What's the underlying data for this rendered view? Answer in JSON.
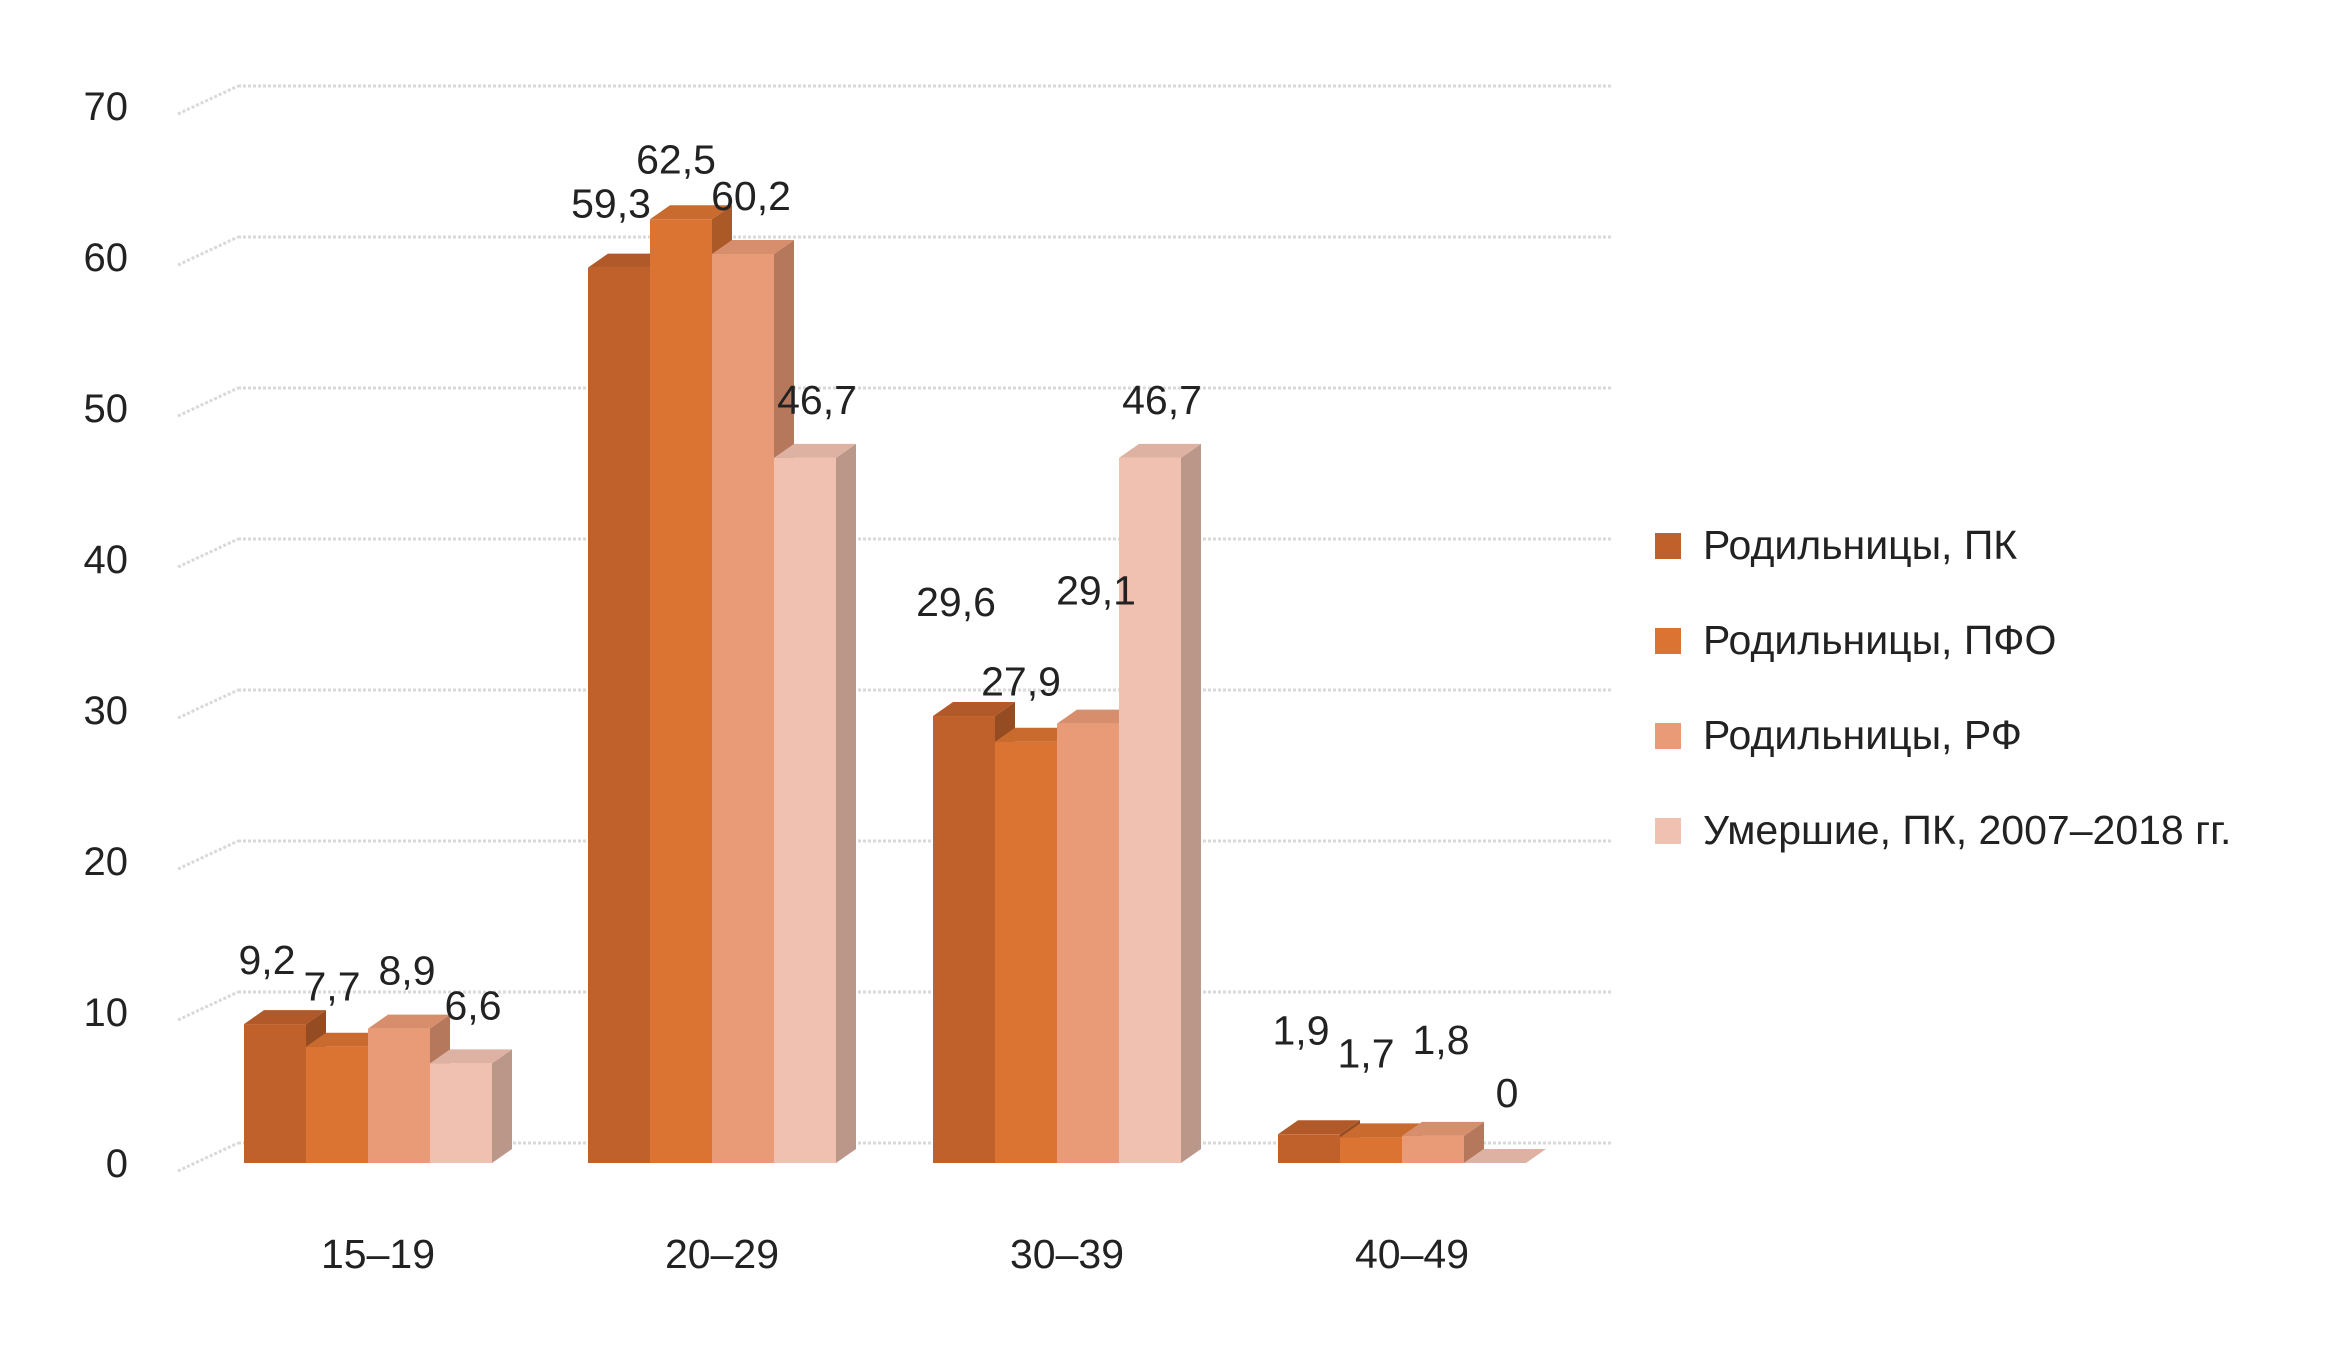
{
  "chart_data": {
    "type": "bar",
    "categories": [
      "15–19",
      "20–29",
      "30–39",
      "40–49"
    ],
    "series": [
      {
        "name": "Родильницы, ПК",
        "values": [
          9.2,
          59.3,
          29.6,
          1.9
        ],
        "labels": [
          "9,2",
          "59,3",
          "29,6",
          "1,9"
        ],
        "color": "#C0612B"
      },
      {
        "name": "Родильницы, ПФО",
        "values": [
          7.7,
          62.5,
          27.9,
          1.7
        ],
        "labels": [
          "7,7",
          "62,5",
          "27,9",
          "1,7"
        ],
        "color": "#DB7332"
      },
      {
        "name": "Родильницы, РФ",
        "values": [
          8.9,
          60.2,
          29.1,
          1.8
        ],
        "labels": [
          "8,9",
          "60,2",
          "29,1",
          "1,8"
        ],
        "color": "#E99A76"
      },
      {
        "name": "Умершие, ПК, 2007–2018 гг.",
        "values": [
          6.6,
          46.7,
          46.7,
          0
        ],
        "labels": [
          "6,6",
          "46,7",
          "46,7",
          "0"
        ],
        "color": "#F0C1B0"
      }
    ],
    "yticks": [
      "0",
      "10",
      "20",
      "30",
      "40",
      "50",
      "60",
      "70"
    ],
    "ylim": [
      0,
      70
    ],
    "grid": true,
    "legend_position": "right",
    "style": "3d-clustered-column"
  }
}
